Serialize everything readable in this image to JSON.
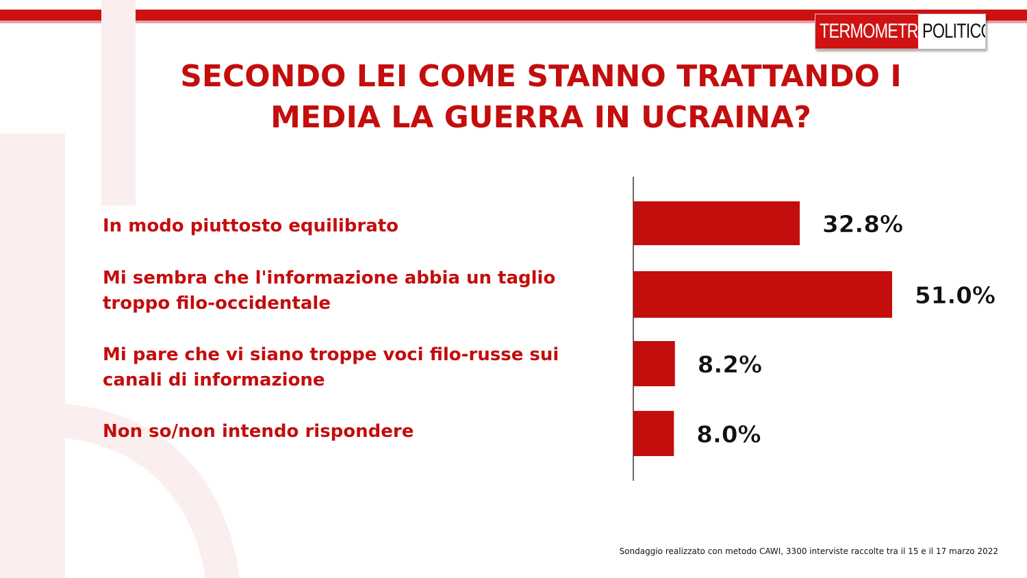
{
  "logo": {
    "left_text": "TERMOMETRO",
    "right_text": "POLITICO"
  },
  "title_lines": [
    "SECONDO LEI COME STANNO TRATTANDO I",
    "MEDIA LA GUERRA IN UCRAINA?"
  ],
  "colors": {
    "brand_red": "#cc1111",
    "bar_red": "#c40d0d",
    "text_red": "#c40d0d"
  },
  "chart_data": {
    "type": "bar",
    "orientation": "horizontal",
    "categories": [
      "In modo piuttosto equilibrato",
      "Mi sembra che l'informazione abbia un taglio troppo filo-occidentale",
      "Mi pare che vi siano troppe voci filo-russe sui canali di informazione",
      "Non so/non intendo rispondere"
    ],
    "category_lines": [
      [
        "In modo piuttosto equilibrato"
      ],
      [
        "Mi sembra che l'informazione abbia un taglio",
        "troppo filo-occidentale"
      ],
      [
        "Mi pare che vi siano troppe voci filo-russe sui",
        "canali di informazione"
      ],
      [
        "Non so/non intendo rispondere"
      ]
    ],
    "values": [
      32.8,
      51.0,
      8.2,
      8.0
    ],
    "value_labels": [
      "32.8%",
      "51.0%",
      "8.2%",
      "8.0%"
    ],
    "unit": "%",
    "xlim": [
      0,
      51.0
    ],
    "grid": false,
    "legend": "none"
  },
  "footnote": "Sondaggio realizzato con metodo CAWI, 3300 interviste raccolte tra il 15 e il 17 marzo 2022"
}
